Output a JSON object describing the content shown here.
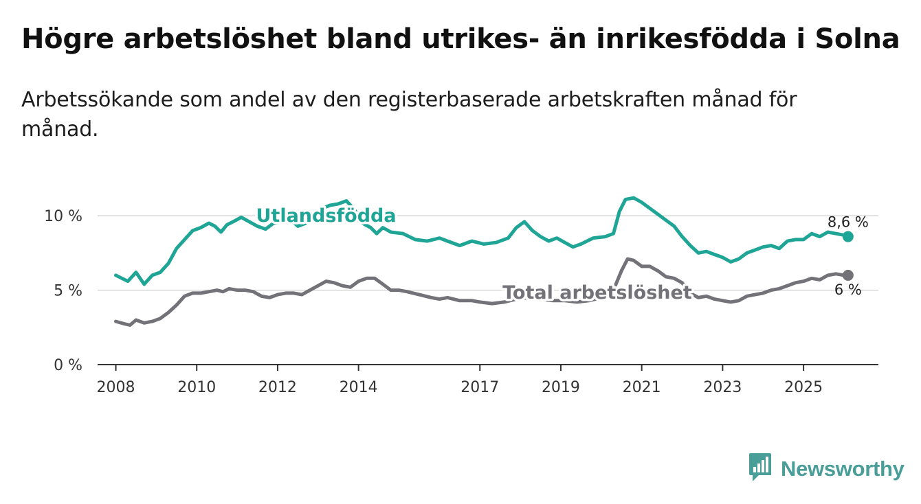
{
  "title": "Högre arbetslöshet bland utrikes- än inrikesfödda i Solna",
  "subtitle": "Arbetssökande som andel av den registerbaserade arbetskraften månad för månad.",
  "brand": {
    "name": "Newsworthy",
    "icon": "newsworthy-logo-icon",
    "color": "#4a9e98"
  },
  "chart_data": {
    "type": "line",
    "title": "Högre arbetslöshet bland utrikes- än inrikesfödda i Solna",
    "xlabel": "",
    "ylabel": "",
    "ylim": [
      0,
      12.5
    ],
    "xlim": [
      2007.55,
      2026.85
    ],
    "grid": true,
    "yticks": [
      {
        "value": 0,
        "label": "0 %"
      },
      {
        "value": 5,
        "label": "5 %"
      },
      {
        "value": 10,
        "label": "10 %"
      }
    ],
    "xticks": [
      {
        "value": 2008,
        "label": "2008"
      },
      {
        "value": 2010,
        "label": "2010"
      },
      {
        "value": 2012,
        "label": "2012"
      },
      {
        "value": 2014,
        "label": "2014"
      },
      {
        "value": 2017,
        "label": "2017"
      },
      {
        "value": 2019,
        "label": "2019"
      },
      {
        "value": 2021,
        "label": "2021"
      },
      {
        "value": 2023,
        "label": "2023"
      },
      {
        "value": 2025,
        "label": "2025"
      }
    ],
    "series": [
      {
        "name": "Utlandsfödda",
        "color": "#1fa596",
        "label_x": 2013.2,
        "label_y": 10.0,
        "end_label": "8,6 %",
        "points": [
          [
            2008.0,
            6.0
          ],
          [
            2008.15,
            5.8
          ],
          [
            2008.3,
            5.6
          ],
          [
            2008.5,
            6.2
          ],
          [
            2008.7,
            5.4
          ],
          [
            2008.9,
            6.0
          ],
          [
            2009.1,
            6.2
          ],
          [
            2009.3,
            6.8
          ],
          [
            2009.5,
            7.8
          ],
          [
            2009.7,
            8.4
          ],
          [
            2009.9,
            9.0
          ],
          [
            2010.1,
            9.2
          ],
          [
            2010.3,
            9.5
          ],
          [
            2010.45,
            9.3
          ],
          [
            2010.6,
            8.9
          ],
          [
            2010.75,
            9.4
          ],
          [
            2010.9,
            9.6
          ],
          [
            2011.1,
            9.9
          ],
          [
            2011.3,
            9.6
          ],
          [
            2011.5,
            9.3
          ],
          [
            2011.7,
            9.1
          ],
          [
            2011.9,
            9.5
          ],
          [
            2012.1,
            9.6
          ],
          [
            2012.3,
            9.8
          ],
          [
            2012.5,
            9.3
          ],
          [
            2012.7,
            9.5
          ],
          [
            2012.9,
            10.1
          ],
          [
            2013.1,
            10.5
          ],
          [
            2013.3,
            10.7
          ],
          [
            2013.5,
            10.8
          ],
          [
            2013.7,
            11.0
          ],
          [
            2013.9,
            10.4
          ],
          [
            2014.1,
            9.5
          ],
          [
            2014.3,
            9.2
          ],
          [
            2014.45,
            8.8
          ],
          [
            2014.6,
            9.2
          ],
          [
            2014.8,
            8.9
          ],
          [
            2015.1,
            8.8
          ],
          [
            2015.4,
            8.4
          ],
          [
            2015.7,
            8.3
          ],
          [
            2016.0,
            8.5
          ],
          [
            2016.2,
            8.3
          ],
          [
            2016.5,
            8.0
          ],
          [
            2016.8,
            8.3
          ],
          [
            2017.1,
            8.1
          ],
          [
            2017.4,
            8.2
          ],
          [
            2017.7,
            8.5
          ],
          [
            2017.9,
            9.2
          ],
          [
            2018.1,
            9.6
          ],
          [
            2018.3,
            9.0
          ],
          [
            2018.5,
            8.6
          ],
          [
            2018.7,
            8.3
          ],
          [
            2018.9,
            8.5
          ],
          [
            2019.1,
            8.2
          ],
          [
            2019.3,
            7.9
          ],
          [
            2019.5,
            8.1
          ],
          [
            2019.8,
            8.5
          ],
          [
            2020.1,
            8.6
          ],
          [
            2020.3,
            8.8
          ],
          [
            2020.45,
            10.3
          ],
          [
            2020.6,
            11.1
          ],
          [
            2020.8,
            11.2
          ],
          [
            2021.0,
            10.9
          ],
          [
            2021.2,
            10.5
          ],
          [
            2021.4,
            10.1
          ],
          [
            2021.6,
            9.7
          ],
          [
            2021.8,
            9.3
          ],
          [
            2022.0,
            8.6
          ],
          [
            2022.2,
            8.0
          ],
          [
            2022.4,
            7.5
          ],
          [
            2022.6,
            7.6
          ],
          [
            2022.8,
            7.4
          ],
          [
            2023.0,
            7.2
          ],
          [
            2023.2,
            6.9
          ],
          [
            2023.4,
            7.1
          ],
          [
            2023.6,
            7.5
          ],
          [
            2023.8,
            7.7
          ],
          [
            2024.0,
            7.9
          ],
          [
            2024.2,
            8.0
          ],
          [
            2024.4,
            7.8
          ],
          [
            2024.6,
            8.3
          ],
          [
            2024.8,
            8.4
          ],
          [
            2025.0,
            8.4
          ],
          [
            2025.2,
            8.8
          ],
          [
            2025.4,
            8.6
          ],
          [
            2025.6,
            8.9
          ],
          [
            2025.8,
            8.8
          ],
          [
            2026.0,
            8.7
          ],
          [
            2026.1,
            8.6
          ]
        ]
      },
      {
        "name": "Total arbetslöshet",
        "color": "#737278",
        "label_x": 2019.9,
        "label_y": 4.85,
        "end_label": "6 %",
        "points": [
          [
            2008.0,
            2.9
          ],
          [
            2008.2,
            2.75
          ],
          [
            2008.35,
            2.65
          ],
          [
            2008.5,
            3.0
          ],
          [
            2008.7,
            2.8
          ],
          [
            2008.9,
            2.9
          ],
          [
            2009.1,
            3.1
          ],
          [
            2009.3,
            3.5
          ],
          [
            2009.5,
            4.0
          ],
          [
            2009.7,
            4.6
          ],
          [
            2009.9,
            4.8
          ],
          [
            2010.1,
            4.8
          ],
          [
            2010.3,
            4.9
          ],
          [
            2010.5,
            5.0
          ],
          [
            2010.65,
            4.9
          ],
          [
            2010.8,
            5.1
          ],
          [
            2011.0,
            5.0
          ],
          [
            2011.2,
            5.0
          ],
          [
            2011.4,
            4.9
          ],
          [
            2011.6,
            4.6
          ],
          [
            2011.8,
            4.5
          ],
          [
            2012.0,
            4.7
          ],
          [
            2012.2,
            4.8
          ],
          [
            2012.4,
            4.8
          ],
          [
            2012.6,
            4.7
          ],
          [
            2012.8,
            5.0
          ],
          [
            2013.0,
            5.3
          ],
          [
            2013.2,
            5.6
          ],
          [
            2013.4,
            5.5
          ],
          [
            2013.6,
            5.3
          ],
          [
            2013.8,
            5.2
          ],
          [
            2014.0,
            5.6
          ],
          [
            2014.2,
            5.8
          ],
          [
            2014.4,
            5.8
          ],
          [
            2014.6,
            5.4
          ],
          [
            2014.8,
            5.0
          ],
          [
            2015.0,
            5.0
          ],
          [
            2015.2,
            4.9
          ],
          [
            2015.5,
            4.7
          ],
          [
            2015.8,
            4.5
          ],
          [
            2016.0,
            4.4
          ],
          [
            2016.2,
            4.5
          ],
          [
            2016.5,
            4.3
          ],
          [
            2016.8,
            4.3
          ],
          [
            2017.0,
            4.2
          ],
          [
            2017.3,
            4.1
          ],
          [
            2017.6,
            4.2
          ],
          [
            2017.9,
            4.4
          ],
          [
            2018.2,
            4.5
          ],
          [
            2018.5,
            4.4
          ],
          [
            2018.8,
            4.3
          ],
          [
            2019.1,
            4.3
          ],
          [
            2019.4,
            4.2
          ],
          [
            2019.7,
            4.3
          ],
          [
            2020.0,
            4.5
          ],
          [
            2020.3,
            5.0
          ],
          [
            2020.5,
            6.3
          ],
          [
            2020.65,
            7.1
          ],
          [
            2020.8,
            7.0
          ],
          [
            2021.0,
            6.6
          ],
          [
            2021.2,
            6.6
          ],
          [
            2021.4,
            6.3
          ],
          [
            2021.6,
            5.9
          ],
          [
            2021.8,
            5.8
          ],
          [
            2022.0,
            5.5
          ],
          [
            2022.2,
            4.8
          ],
          [
            2022.4,
            4.5
          ],
          [
            2022.6,
            4.6
          ],
          [
            2022.8,
            4.4
          ],
          [
            2023.0,
            4.3
          ],
          [
            2023.2,
            4.2
          ],
          [
            2023.4,
            4.3
          ],
          [
            2023.6,
            4.6
          ],
          [
            2023.8,
            4.7
          ],
          [
            2024.0,
            4.8
          ],
          [
            2024.2,
            5.0
          ],
          [
            2024.4,
            5.1
          ],
          [
            2024.6,
            5.3
          ],
          [
            2024.8,
            5.5
          ],
          [
            2025.0,
            5.6
          ],
          [
            2025.2,
            5.8
          ],
          [
            2025.4,
            5.7
          ],
          [
            2025.6,
            6.0
          ],
          [
            2025.8,
            6.1
          ],
          [
            2026.0,
            6.0
          ],
          [
            2026.1,
            6.0
          ]
        ]
      }
    ]
  }
}
